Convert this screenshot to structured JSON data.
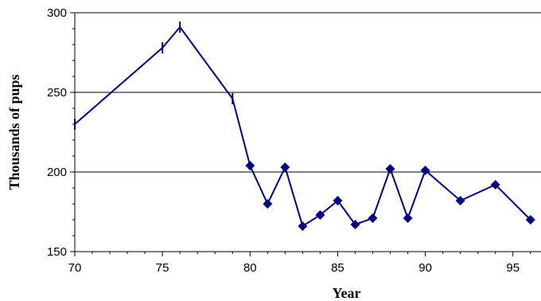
{
  "chart_data": {
    "type": "line",
    "title": "",
    "xlabel": "Year",
    "ylabel": "Thousands of pups",
    "xlim": [
      70,
      96
    ],
    "ylim": [
      150,
      300
    ],
    "x_ticks": [
      70,
      75,
      80,
      85,
      90,
      95
    ],
    "x_tick_labels": [
      "70",
      "75",
      "80",
      "85",
      "90",
      "95"
    ],
    "y_ticks": [
      150,
      200,
      250,
      300
    ],
    "y_tick_labels": [
      "150",
      "200",
      "250",
      "300"
    ],
    "grid": "horizontal major lines",
    "legend": "none",
    "line_color": "#000080",
    "series": [
      {
        "values": [
          {
            "x": 70,
            "y": 230,
            "marker": "dash"
          },
          {
            "x": 75,
            "y": 278,
            "marker": "dash"
          },
          {
            "x": 76,
            "y": 291,
            "marker": "dash"
          },
          {
            "x": 79,
            "y": 246,
            "marker": "dash"
          },
          {
            "x": 80,
            "y": 204,
            "marker": "diamond"
          },
          {
            "x": 81,
            "y": 180,
            "marker": "diamond"
          },
          {
            "x": 82,
            "y": 203,
            "marker": "diamond"
          },
          {
            "x": 83,
            "y": 166,
            "marker": "diamond"
          },
          {
            "x": 84,
            "y": 173,
            "marker": "diamond"
          },
          {
            "x": 85,
            "y": 182,
            "marker": "diamond"
          },
          {
            "x": 86,
            "y": 167,
            "marker": "diamond"
          },
          {
            "x": 87,
            "y": 171,
            "marker": "diamond"
          },
          {
            "x": 88,
            "y": 202,
            "marker": "diamond"
          },
          {
            "x": 89,
            "y": 171,
            "marker": "diamond"
          },
          {
            "x": 90,
            "y": 201,
            "marker": "diamond"
          },
          {
            "x": 92,
            "y": 182,
            "marker": "diamond"
          },
          {
            "x": 94,
            "y": 192,
            "marker": "diamond"
          },
          {
            "x": 96,
            "y": 170,
            "marker": "diamond"
          }
        ]
      }
    ]
  }
}
